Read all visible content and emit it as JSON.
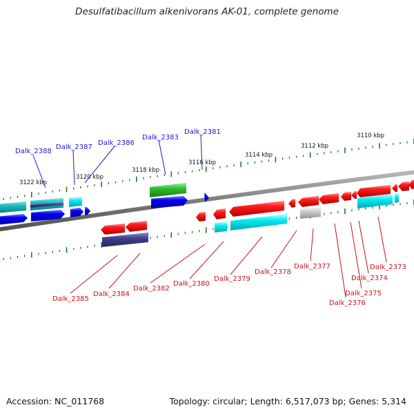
{
  "title": "Desulfatibacillum alkenivorans AK-01, complete genome",
  "footer": {
    "accession": "Accession: NC_011768",
    "topology": "Topology: circular; Length: 6,517,073 bp; Genes: 5,314"
  },
  "colors": {
    "backbone": "#808080",
    "tick": "#1a7a1a",
    "top_label": "#1a1acd",
    "bottom_label": "#cc1111",
    "gene_red": "#ee1111",
    "gene_blue": "#0000ee",
    "gene_cyan": "#00e5ee",
    "gene_teal": "#17bcc2",
    "gene_green": "#2eb82e",
    "gene_purple": "#3d3d8a",
    "gene_grey": "#bdbdbd"
  },
  "scale_labels": [
    "3122 kbp",
    "3120 kbp",
    "3118 kbp",
    "3116 kbp",
    "3114 kbp",
    "3112 kbp",
    "3110 kbp"
  ],
  "top_gene_labels": [
    "Dalk_2388",
    "Dalk_2387",
    "Dalk_2386",
    "Dalk_2383",
    "Dalk_2381"
  ],
  "bottom_gene_labels": [
    "Dalk_2385",
    "Dalk_2384",
    "Dalk_2382",
    "Dalk_2380",
    "Dalk_2379",
    "Dalk_2378",
    "Dalk_2377",
    "Dalk_2376",
    "Dalk_2375",
    "Dalk_2374",
    "Dalk_2373"
  ]
}
